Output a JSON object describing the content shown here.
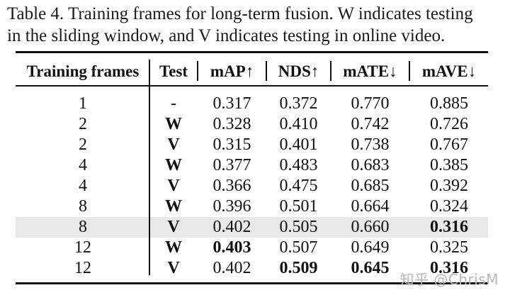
{
  "caption": {
    "line1": "Table 4. Training frames for long-term fusion. W indicates testing",
    "line2": "in the sliding window, and V indicates testing in online video."
  },
  "table": {
    "headers": [
      "Training frames",
      "Test",
      "mAP↑",
      "NDS↑",
      "mATE↓",
      "mAVE↓"
    ],
    "rows": [
      [
        "1",
        "-",
        "0.317",
        "0.372",
        "0.770",
        "0.885"
      ],
      [
        "2",
        "W",
        "0.328",
        "0.410",
        "0.742",
        "0.726"
      ],
      [
        "2",
        "V",
        "0.315",
        "0.401",
        "0.738",
        "0.767"
      ],
      [
        "4",
        "W",
        "0.377",
        "0.483",
        "0.683",
        "0.385"
      ],
      [
        "4",
        "V",
        "0.366",
        "0.475",
        "0.685",
        "0.392"
      ],
      [
        "8",
        "W",
        "0.396",
        "0.501",
        "0.664",
        "0.324"
      ],
      [
        "8",
        "V",
        "0.402",
        "0.505",
        "0.660",
        "0.316"
      ],
      [
        "12",
        "W",
        "0.403",
        "0.507",
        "0.649",
        "0.325"
      ],
      [
        "12",
        "V",
        "0.402",
        "0.509",
        "0.645",
        "0.316"
      ]
    ],
    "highlight_color": "#e8e8e8"
  },
  "watermark": "知乎 @ChrisM"
}
